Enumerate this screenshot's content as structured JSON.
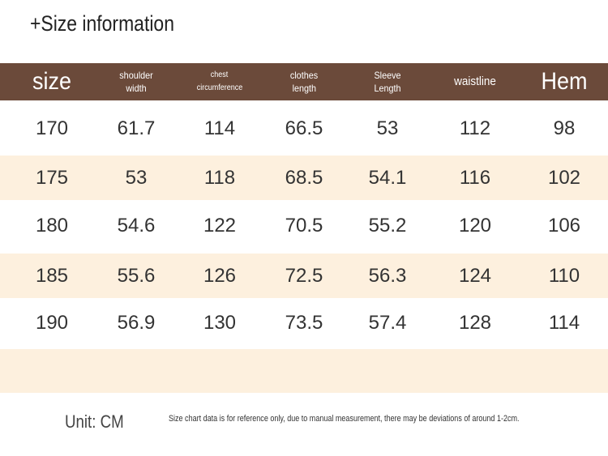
{
  "title": "+Size information",
  "table": {
    "header": [
      [
        "size"
      ],
      [
        "shoulder",
        "width"
      ],
      [
        "chest",
        "circumference"
      ],
      [
        "clothes",
        "length"
      ],
      [
        "Sleeve",
        "Length"
      ],
      [
        "waistline"
      ],
      [
        "Hem"
      ]
    ],
    "rows": [
      [
        "170",
        "61.7",
        "114",
        "66.5",
        "53",
        "112",
        "98"
      ],
      [
        "175",
        "53",
        "118",
        "68.5",
        "54.1",
        "116",
        "102"
      ],
      [
        "180",
        "54.6",
        "122",
        "70.5",
        "55.2",
        "120",
        "106"
      ],
      [
        "185",
        "55.6",
        "126",
        "72.5",
        "56.3",
        "124",
        "110"
      ],
      [
        "190",
        "56.9",
        "130",
        "73.5",
        "57.4",
        "128",
        "114"
      ]
    ]
  },
  "footer": {
    "unit": "Unit: CM",
    "note": "Size chart data is for reference only, due to manual measurement, there may be deviations of around 1-2cm."
  }
}
